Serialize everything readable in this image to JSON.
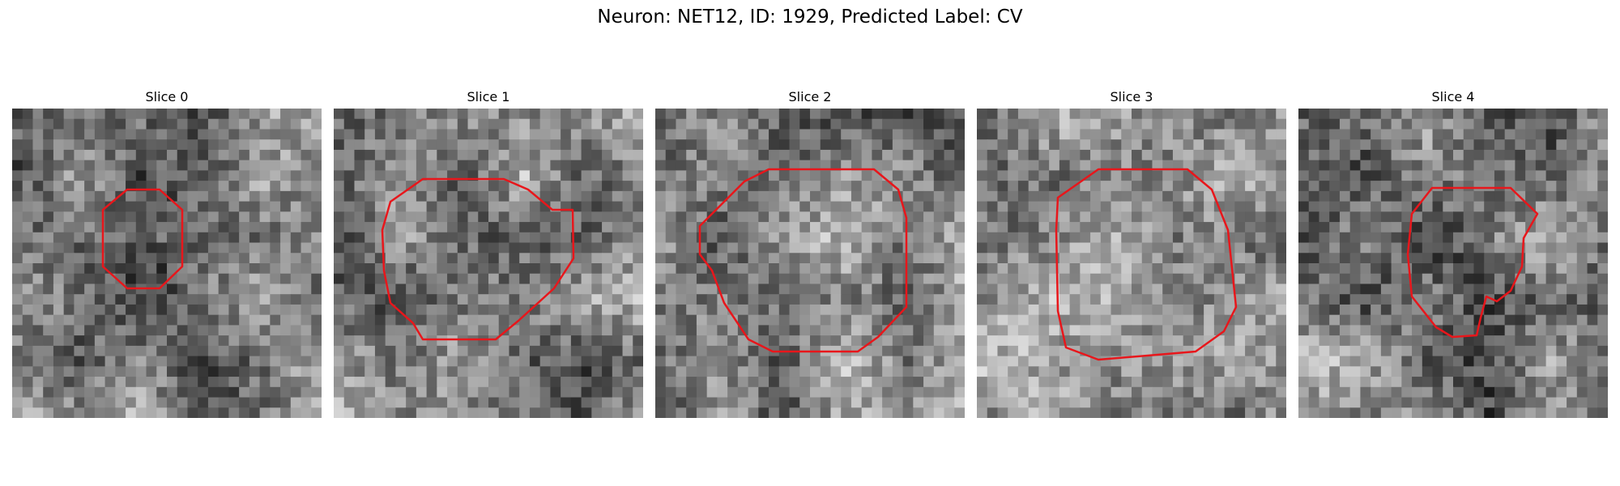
{
  "figure": {
    "title": "Neuron: NET12, ID: 1929, Predicted Label: CV"
  },
  "outline_color": "#e8161b",
  "panels": [
    {
      "title": "Slice 0",
      "seed": 11,
      "center_shade": "dark"
    },
    {
      "title": "Slice 1",
      "seed": 23,
      "center_shade": "mid"
    },
    {
      "title": "Slice 2",
      "seed": 37,
      "center_shade": "light"
    },
    {
      "title": "Slice 3",
      "seed": 51,
      "center_shade": "light"
    },
    {
      "title": "Slice 4",
      "seed": 67,
      "center_shade": "dark"
    }
  ]
}
